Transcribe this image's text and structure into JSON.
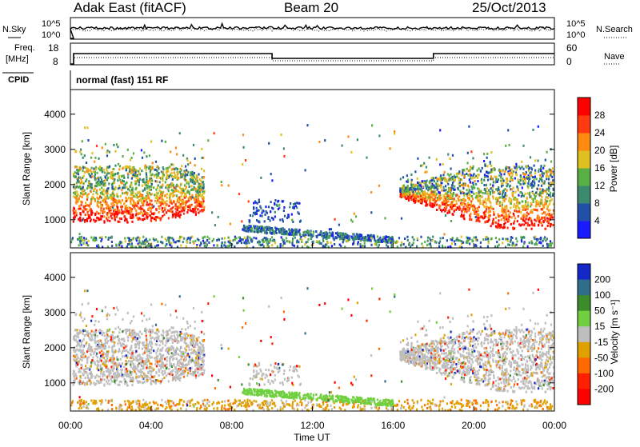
{
  "header": {
    "station": "Adak East (fitACF)",
    "beam": "Beam 20",
    "date": "25/Oct/2013"
  },
  "noise_panel": {
    "left_label": "N.Sky",
    "right_label": "N.Search",
    "left_ticks": [
      "10^5",
      "10^0"
    ],
    "right_ticks": [
      "10^5",
      "10^0"
    ]
  },
  "freq_panel": {
    "left_label": "Freq.",
    "left_unit": "[MHz]",
    "right_label": "Nave",
    "left_ticks": [
      "18",
      "8"
    ],
    "right_ticks": [
      "60",
      "0"
    ]
  },
  "cpid": {
    "label": "CPID",
    "value": "normal (fast) 151 RF"
  },
  "chart_data": [
    {
      "type": "heatmap",
      "name": "power",
      "ylabel": "Slant Range [km]",
      "yticks": [
        "1000",
        "2000",
        "3000",
        "4000"
      ],
      "ylim": [
        200,
        4700
      ],
      "colorbar": {
        "label": "Power [dB]",
        "ticks": [
          "4",
          "8",
          "12",
          "16",
          "20",
          "24",
          "28"
        ],
        "colors": [
          "#1a1aff",
          "#2050a8",
          "#3c8a6e",
          "#58b044",
          "#e0c020",
          "#ff8a10",
          "#ff3a10",
          "#ff0000"
        ]
      }
    },
    {
      "type": "heatmap",
      "name": "velocity",
      "ylabel": "Slant Range [km]",
      "yticks": [
        "1000",
        "2000",
        "3000",
        "4000"
      ],
      "ylim": [
        200,
        4700
      ],
      "colorbar": {
        "label": "Velocity [m s⁻¹]",
        "ticks": [
          "200",
          "100",
          "50",
          "15",
          "-15",
          "-50",
          "-100",
          "-200"
        ],
        "colors": [
          "#1428c8",
          "#2e6e8a",
          "#3c8c2c",
          "#70d040",
          "#bebebe",
          "#e0a000",
          "#ff6a00",
          "#ff2000",
          "#ff0000"
        ]
      }
    }
  ],
  "x_axis": {
    "label": "Time UT",
    "ticks": [
      "00:00",
      "04:00",
      "08:00",
      "12:00",
      "16:00",
      "20:00",
      "00:00"
    ]
  }
}
